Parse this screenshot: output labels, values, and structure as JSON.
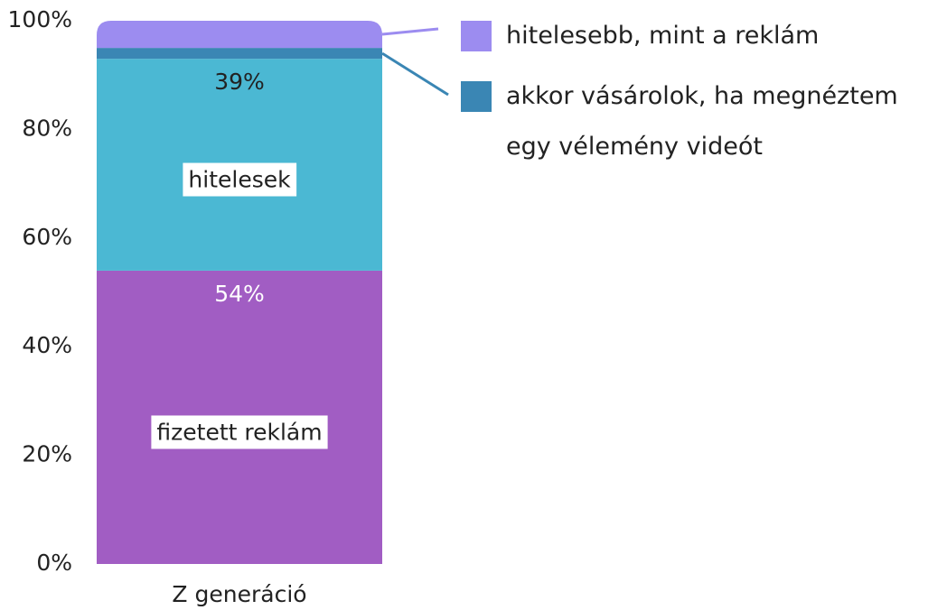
{
  "chart_data": {
    "type": "stacked_bar",
    "categories": [
      "Z generáció"
    ],
    "series": [
      {
        "name": "fizetett reklám",
        "color": "#a15dc3",
        "values": [
          54
        ],
        "value_labels": [
          "54%"
        ],
        "name_position": "inside"
      },
      {
        "name": "hitelesek",
        "color": "#4bb8d3",
        "values": [
          39
        ],
        "value_labels": [
          "39%"
        ],
        "name_position": "inside"
      },
      {
        "name": "akkor vásárolok, ha megnéztem egy vélemény videót",
        "color": "#3a86b4",
        "values": [
          2
        ],
        "name_position": "legend"
      },
      {
        "name": "hitelesebb, mint a reklám",
        "color": "#9c8cf0",
        "values": [
          5
        ],
        "name_position": "legend"
      }
    ],
    "ylim": [
      0,
      100
    ],
    "yticks": [
      {
        "value": 0,
        "label": "0%"
      },
      {
        "value": 20,
        "label": "20%"
      },
      {
        "value": 40,
        "label": "40%"
      },
      {
        "value": 60,
        "label": "60%"
      },
      {
        "value": 80,
        "label": "80%"
      },
      {
        "value": 100,
        "label": "100%"
      }
    ],
    "grid": false
  }
}
